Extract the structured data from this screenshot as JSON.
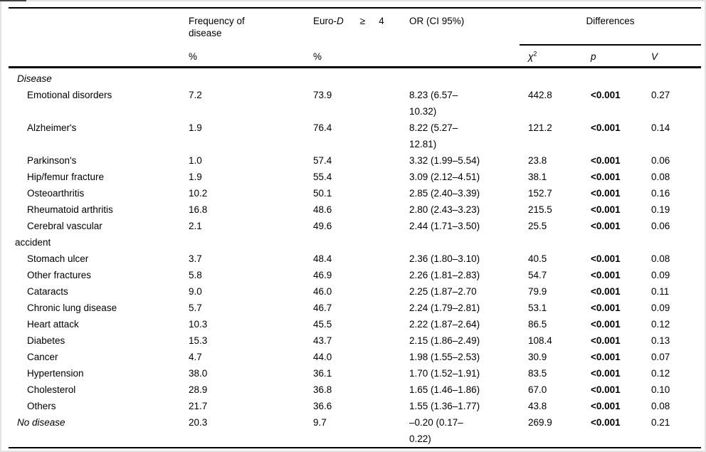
{
  "page": {
    "background": "#ffffff",
    "text_color": "#000000"
  },
  "table": {
    "header": {
      "freq_label": "Frequency of\ndisease",
      "freq_unit": "%",
      "eurod_prefix": "Euro-",
      "eurod_d": "D",
      "eurod_geq": "≥",
      "eurod_num": "4",
      "eurod_unit": "%",
      "or_label": "OR (CI 95%)",
      "differences_label": "Differences",
      "chi_symbol": "χ",
      "chi_sup": "2",
      "p_label": "p",
      "v_label": "V"
    },
    "rows": [
      {
        "type": "section",
        "label": "Disease",
        "freq": "",
        "eurod": "",
        "or": "",
        "chi2": "",
        "p": "",
        "v": ""
      },
      {
        "type": "item",
        "label": "Emotional disorders",
        "freq": "7.2",
        "eurod": "73.9",
        "or": "8.23 (6.57–\n10.32)",
        "chi2": "442.8",
        "p": "<0.001",
        "v": "0.27"
      },
      {
        "type": "item",
        "label": "Alzheimer's",
        "freq": "1.9",
        "eurod": "76.4",
        "or": "8.22 (5.27–\n12.81)",
        "chi2": "121.2",
        "p": "<0.001",
        "v": "0.14"
      },
      {
        "type": "item",
        "label": "Parkinson's",
        "freq": "1.0",
        "eurod": "57.4",
        "or": "3.32 (1.99–5.54)",
        "chi2": "23.8",
        "p": "<0.001",
        "v": "0.06"
      },
      {
        "type": "item",
        "label": "Hip/femur fracture",
        "freq": "1.9",
        "eurod": "55.4",
        "or": "3.09 (2.12–4.51)",
        "chi2": "38.1",
        "p": "<0.001",
        "v": "0.08"
      },
      {
        "type": "item",
        "label": "Osteoarthritis",
        "freq": "10.2",
        "eurod": "50.1",
        "or": "2.85 (2.40–3.39)",
        "chi2": "152.7",
        "p": "<0.001",
        "v": "0.16"
      },
      {
        "type": "item",
        "label": "Rheumatoid arthritis",
        "freq": "16.8",
        "eurod": "48.6",
        "or": "2.80 (2.43–3.23)",
        "chi2": "215.5",
        "p": "<0.001",
        "v": "0.19"
      },
      {
        "type": "item",
        "label": "Cerebral vascular\naccident",
        "freq": "2.1",
        "eurod": "49.6",
        "or": "2.44 (1.71–3.50)",
        "chi2": "25.5",
        "p": "<0.001",
        "v": "0.06"
      },
      {
        "type": "item",
        "label": "Stomach ulcer",
        "freq": "3.7",
        "eurod": "48.4",
        "or": "2.36 (1.80–3.10)",
        "chi2": "40.5",
        "p": "<0.001",
        "v": "0.08"
      },
      {
        "type": "item",
        "label": "Other fractures",
        "freq": "5.8",
        "eurod": "46.9",
        "or": "2.26 (1.81–2.83)",
        "chi2": "54.7",
        "p": "<0.001",
        "v": "0.09"
      },
      {
        "type": "item",
        "label": "Cataracts",
        "freq": "9.0",
        "eurod": "46.0",
        "or": "2.25 (1.87–2.70",
        "chi2": "79.9",
        "p": "<0.001",
        "v": "0.11"
      },
      {
        "type": "item",
        "label": "Chronic lung disease",
        "freq": "5.7",
        "eurod": "46.7",
        "or": "2.24 (1.79–2.81)",
        "chi2": "53.1",
        "p": "<0.001",
        "v": "0.09"
      },
      {
        "type": "item",
        "label": "Heart attack",
        "freq": "10.3",
        "eurod": "45.5",
        "or": "2.22 (1.87–2.64)",
        "chi2": "86.5",
        "p": "<0.001",
        "v": "0.12"
      },
      {
        "type": "item",
        "label": "Diabetes",
        "freq": "15.3",
        "eurod": "43.7",
        "or": "2.15 (1.86–2.49)",
        "chi2": "108.4",
        "p": "<0.001",
        "v": "0.13"
      },
      {
        "type": "item",
        "label": "Cancer",
        "freq": "4.7",
        "eurod": "44.0",
        "or": "1.98 (1.55–2.53)",
        "chi2": "30.9",
        "p": "<0.001",
        "v": "0.07"
      },
      {
        "type": "item",
        "label": "Hypertension",
        "freq": "38.0",
        "eurod": "36.1",
        "or": "1.70 (1.52–1.91)",
        "chi2": "83.5",
        "p": "<0.001",
        "v": "0.12"
      },
      {
        "type": "item",
        "label": "Cholesterol",
        "freq": "28.9",
        "eurod": "36.8",
        "or": "1.65 (1.46–1.86)",
        "chi2": "67.0",
        "p": "<0.001",
        "v": "0.10"
      },
      {
        "type": "item",
        "label": "Others",
        "freq": "21.7",
        "eurod": "36.6",
        "or": "1.55 (1.36–1.77)",
        "chi2": "43.8",
        "p": "<0.001",
        "v": "0.08"
      },
      {
        "type": "section",
        "label": "No disease",
        "freq": "20.3",
        "eurod": "9.7",
        "or": "–0.20 (0.17–\n0.22)",
        "chi2": "269.9",
        "p": "<0.001",
        "v": "0.21"
      }
    ]
  }
}
